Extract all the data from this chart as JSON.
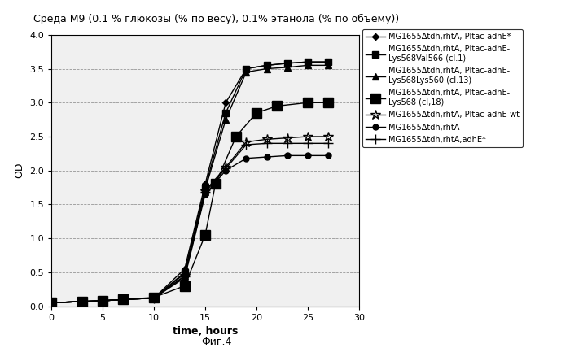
{
  "title": "Среда M9 (0.1 % глюкозы (% по весу), 0.1% этанола (% по объему))",
  "xlabel": "time, hours",
  "ylabel": "OD",
  "caption": "Фиг.4",
  "xlim": [
    0,
    30
  ],
  "ylim": [
    0,
    4
  ],
  "xticks": [
    0,
    5,
    10,
    15,
    20,
    25,
    30
  ],
  "yticks": [
    0,
    0.5,
    1,
    1.5,
    2,
    2.5,
    3,
    3.5,
    4
  ],
  "series": [
    {
      "label": "MG1655Δtdh,rhtA, Pltac-adhE*",
      "marker": "D",
      "markersize": 4,
      "x": [
        0,
        3,
        5,
        7,
        10,
        13,
        15,
        17,
        19,
        21,
        23,
        25,
        27
      ],
      "y": [
        0.05,
        0.07,
        0.08,
        0.1,
        0.12,
        0.55,
        1.8,
        3.0,
        3.5,
        3.55,
        3.58,
        3.6,
        3.6
      ]
    },
    {
      "label": "MG1655Δtdh,rhtA, Pltac-adhE-\nLys568Val566 (cl.1)",
      "marker": "s",
      "markersize": 6,
      "x": [
        0,
        3,
        5,
        7,
        10,
        13,
        15,
        17,
        19,
        21,
        23,
        25,
        27
      ],
      "y": [
        0.05,
        0.07,
        0.08,
        0.1,
        0.12,
        0.5,
        1.75,
        2.85,
        3.5,
        3.55,
        3.58,
        3.6,
        3.6
      ]
    },
    {
      "label": "MG1655Δtdh,rhtA, Pltac-adhE-\nLys568Lys560 (cl.13)",
      "marker": "^",
      "markersize": 6,
      "x": [
        0,
        3,
        5,
        7,
        10,
        13,
        15,
        17,
        19,
        21,
        23,
        25,
        27
      ],
      "y": [
        0.05,
        0.07,
        0.08,
        0.1,
        0.12,
        0.48,
        1.72,
        2.75,
        3.45,
        3.5,
        3.52,
        3.55,
        3.55
      ]
    },
    {
      "label": "MG1655Δtdh,rhtA, Pltac-adhE-\nLys568 (cl,18)",
      "marker": "s",
      "markersize": 8,
      "x": [
        0,
        3,
        5,
        7,
        10,
        13,
        15,
        16,
        18,
        20,
        22,
        25,
        27
      ],
      "y": [
        0.05,
        0.07,
        0.08,
        0.1,
        0.13,
        0.3,
        1.05,
        1.8,
        2.5,
        2.85,
        2.95,
        3.0,
        3.0
      ]
    },
    {
      "label": "MG1655Δtdh,rhtA, Pltac-adhE-wt",
      "marker": "*",
      "markersize": 9,
      "x": [
        0,
        3,
        5,
        7,
        10,
        13,
        15,
        17,
        19,
        21,
        23,
        25,
        27
      ],
      "y": [
        0.05,
        0.07,
        0.08,
        0.1,
        0.12,
        0.45,
        1.7,
        2.05,
        2.42,
        2.46,
        2.48,
        2.5,
        2.5
      ]
    },
    {
      "label": "MG1655Δtdh,rhtA",
      "marker": "o",
      "markersize": 5,
      "x": [
        0,
        3,
        5,
        7,
        10,
        13,
        15,
        17,
        19,
        21,
        23,
        25,
        27
      ],
      "y": [
        0.05,
        0.07,
        0.08,
        0.1,
        0.12,
        0.42,
        1.65,
        2.0,
        2.18,
        2.2,
        2.22,
        2.22,
        2.22
      ]
    },
    {
      "label": "MG1655Δtdh,rhtA,adhE*",
      "marker": "+",
      "markersize": 8,
      "x": [
        0,
        3,
        5,
        7,
        10,
        13,
        15,
        17,
        19,
        21,
        23,
        25,
        27
      ],
      "y": [
        0.05,
        0.07,
        0.08,
        0.1,
        0.12,
        0.44,
        1.68,
        2.03,
        2.38,
        2.4,
        2.4,
        2.4,
        2.4
      ]
    }
  ]
}
